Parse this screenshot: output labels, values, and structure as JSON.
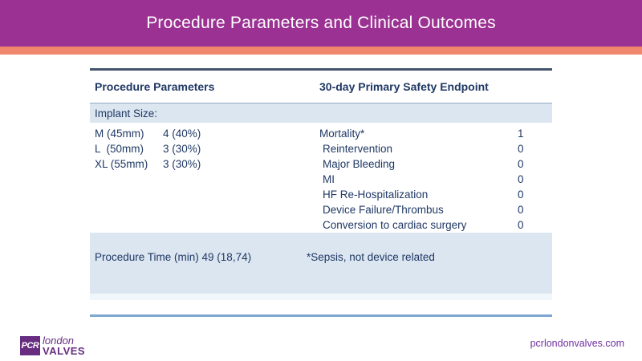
{
  "slide": {
    "title": "Procedure Parameters and Clinical Outcomes",
    "footer_url": "pcrlondonvalves.com",
    "logo": {
      "initials": "PCR",
      "line1": "london",
      "line2": "VALVES"
    }
  },
  "table": {
    "headers": [
      "Procedure Parameters",
      "30-day Primary Safety Endpoint"
    ],
    "section_label": "Implant Size:",
    "implant_sizes": [
      {
        "label": "M (45mm)",
        "value": "4 (40%)"
      },
      {
        "label": "L  (50mm)",
        "value": "3 (30%)"
      },
      {
        "label": "XL (55mm)",
        "value": "3 (30%)"
      }
    ],
    "safety_endpoints": [
      {
        "label": "Mortality*",
        "value": "1"
      },
      {
        "label": "Reintervention",
        "value": "0"
      },
      {
        "label": "Major Bleeding",
        "value": "0"
      },
      {
        "label": "MI",
        "value": "0"
      },
      {
        "label": "HF Re-Hospitalization",
        "value": "0"
      },
      {
        "label": "Device Failure/Thrombus",
        "value": "0"
      },
      {
        "label": "Conversion to cardiac surgery",
        "value": "0"
      }
    ],
    "procedure_time": "Procedure Time (min) 49 (18,74)",
    "footnote": "*Sepsis, not device related"
  },
  "colors": {
    "header_purple": "#9B3192",
    "accent_orange": "#F0876C",
    "navy_text": "#1F3864",
    "light_blue_fill": "#DCE6F1",
    "top_border": "#44546A",
    "bottom_border": "#7EA6D2",
    "logo_purple": "#662D80"
  }
}
